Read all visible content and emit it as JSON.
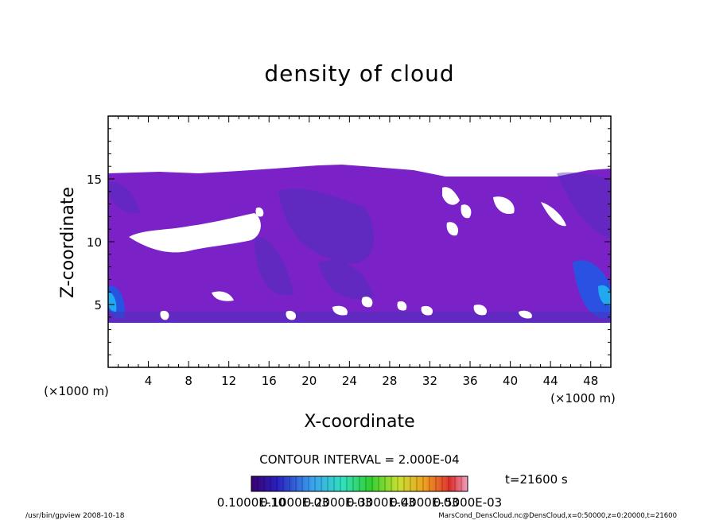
{
  "chart_data": {
    "type": "heatmap",
    "title": "density of cloud",
    "xlabel": "X-coordinate",
    "ylabel": "Z-coordinate",
    "x_unit": "(×1000 m)",
    "y_unit": "(×1000 m)",
    "xlim": [
      0,
      50
    ],
    "ylim": [
      0,
      20
    ],
    "xticks": [
      4,
      8,
      12,
      16,
      20,
      24,
      28,
      32,
      36,
      40,
      44,
      48
    ],
    "yticks": [
      5,
      10,
      15
    ],
    "contour_interval": "CONTOUR INTERVAL = 2.000E-04",
    "time_label": "t=21600 s",
    "colorbar_labels": [
      "0.1000E-10",
      "0.1000E-03",
      "0.2000E-03",
      "0.3000E-03",
      "0.4000E-03",
      "0.5000E-03"
    ],
    "colors": {
      "cloud_main": "#7a22c8",
      "cloud_dense": "#4a2fb8",
      "cloud_edge": "#1c5ae6",
      "cloud_peak": "#1fb2f0"
    },
    "cloud_layer": {
      "base_km": 3.8,
      "top_km": 15.3,
      "max_top_km": 16.1,
      "high_density_x_km": [
        0.5,
        49.5
      ],
      "high_density_z_km": 5
    }
  },
  "footer": {
    "program": "/usr/bin/gpview   2008-10-18",
    "source": "MarsCond_DensCloud.nc@DensCloud,x=0:50000,z=0:20000,t=21600"
  }
}
